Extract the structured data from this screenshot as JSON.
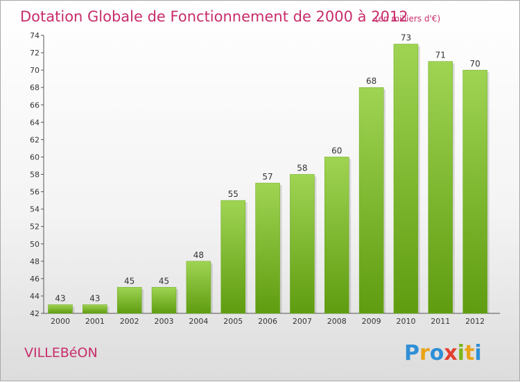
{
  "chart_data": {
    "type": "bar",
    "title": "Dotation Globale de Fonctionnement de 2000 à 2012",
    "subtitle": "(en milliers d'€)",
    "categories": [
      "2000",
      "2001",
      "2002",
      "2003",
      "2004",
      "2005",
      "2006",
      "2007",
      "2008",
      "2009",
      "2010",
      "2011",
      "2012"
    ],
    "values": [
      43,
      43,
      45,
      45,
      48,
      55,
      57,
      58,
      60,
      68,
      73,
      71,
      70
    ],
    "ylim": [
      42,
      74
    ],
    "yticks": [
      42,
      44,
      46,
      48,
      50,
      52,
      54,
      56,
      58,
      60,
      62,
      64,
      66,
      68,
      70,
      72,
      74
    ],
    "grid": false,
    "legend": "none",
    "bar_color_top": "#9fd453",
    "bar_color_bottom": "#5f9c10"
  },
  "commune": "VILLEBéON",
  "logo": {
    "letters": [
      "P",
      "r",
      "o",
      "x",
      "i",
      "t",
      "i"
    ],
    "colors": [
      "#2f8fd6",
      "#e8a317",
      "#2f8fd6",
      "#e43d30",
      "#7cb518",
      "#e8a317",
      "#2f8fd6"
    ]
  }
}
